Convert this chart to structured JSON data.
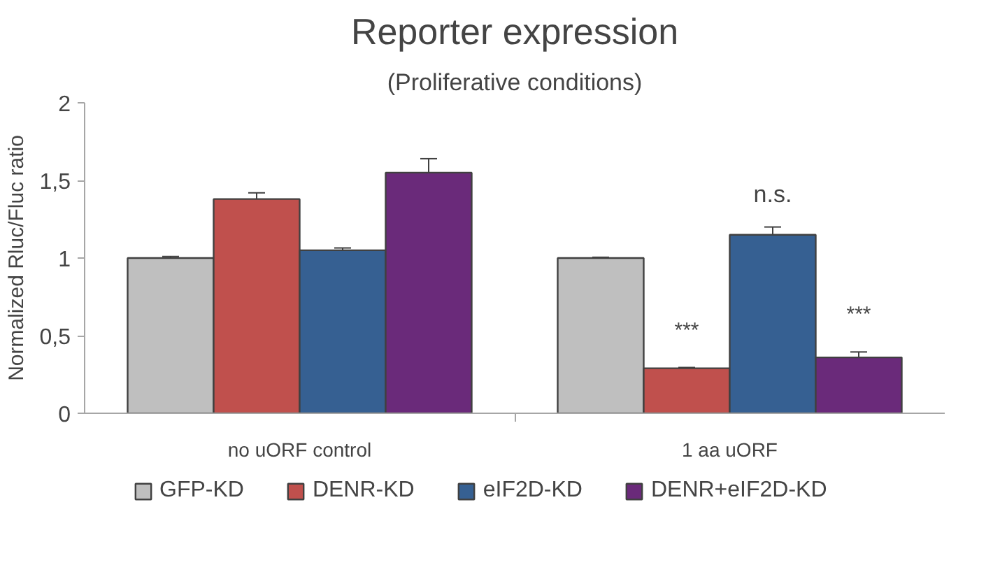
{
  "chart_data": {
    "type": "bar",
    "title": "Reporter expression",
    "subtitle": "(Proliferative conditions)",
    "ylabel": "Normalized Rluc/Fluc ratio",
    "categories": [
      "no uORF control",
      "1 aa uORF"
    ],
    "series": [
      {
        "name": "GFP-KD",
        "color": "#bfbfbf",
        "values": [
          1.0,
          1.0
        ],
        "errors": [
          0.01,
          0.005
        ]
      },
      {
        "name": "DENR-KD",
        "color": "#c0504d",
        "values": [
          1.38,
          0.29
        ],
        "errors": [
          0.04,
          0.005
        ]
      },
      {
        "name": "eIF2D-KD",
        "color": "#366092",
        "values": [
          1.05,
          1.15
        ],
        "errors": [
          0.015,
          0.05
        ]
      },
      {
        "name": "DENR+eIF2D-KD",
        "color": "#6a2a7a",
        "values": [
          1.55,
          0.36
        ],
        "errors": [
          0.09,
          0.035
        ]
      }
    ],
    "ylim": [
      0,
      2
    ],
    "yticks": [
      0,
      {
        "value": 0.5,
        "label": "0,5"
      },
      1,
      {
        "value": 1.5,
        "label": "1,5"
      },
      2
    ],
    "annotations": [
      "***",
      "n.s.",
      "***"
    ],
    "grid": false,
    "legend": "bottom"
  }
}
